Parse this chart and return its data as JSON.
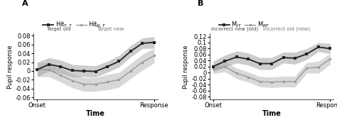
{
  "panel_A": {
    "label": "A",
    "subtitle1": "Target old",
    "subtitle2": "Target new",
    "x": [
      0,
      1,
      2,
      3,
      4,
      5,
      6,
      7,
      8,
      9,
      10
    ],
    "black_y": [
      0.003,
      0.015,
      0.01,
      0.001,
      0.0,
      -0.001,
      0.01,
      0.022,
      0.045,
      0.063,
      0.065
    ],
    "black_upper": [
      0.02,
      0.03,
      0.025,
      0.015,
      0.013,
      0.012,
      0.022,
      0.035,
      0.058,
      0.075,
      0.078
    ],
    "black_lower": [
      -0.013,
      0.0,
      -0.005,
      -0.013,
      -0.013,
      -0.014,
      -0.003,
      0.009,
      0.032,
      0.051,
      0.052
    ],
    "gray_y": [
      0.003,
      0.003,
      -0.01,
      -0.022,
      -0.03,
      -0.03,
      -0.025,
      -0.02,
      0.0,
      0.02,
      0.035
    ],
    "gray_upper": [
      0.018,
      0.018,
      0.005,
      -0.007,
      -0.015,
      -0.015,
      -0.008,
      -0.003,
      0.017,
      0.038,
      0.052
    ],
    "gray_lower": [
      -0.013,
      -0.013,
      -0.025,
      -0.038,
      -0.046,
      -0.046,
      -0.043,
      -0.037,
      -0.017,
      0.002,
      0.018
    ],
    "ylabel": "Pupil response",
    "xlabel": "Time",
    "ylim": [
      -0.065,
      0.085
    ],
    "yticks": [
      -0.06,
      -0.04,
      -0.02,
      0.0,
      0.02,
      0.04,
      0.06,
      0.08
    ],
    "leg_label1": "Hit$_{T,T}$",
    "leg_label2": "Hit$_{N,T}$"
  },
  "panel_B": {
    "label": "B",
    "subtitle1": "Incorrect new (old)",
    "subtitle2": "Incorrect old (new)",
    "x": [
      0,
      1,
      2,
      3,
      4,
      5,
      6,
      7,
      8,
      9,
      10
    ],
    "black_y": [
      0.02,
      0.038,
      0.052,
      0.045,
      0.03,
      0.03,
      0.05,
      0.048,
      0.062,
      0.085,
      0.08
    ],
    "black_upper": [
      0.038,
      0.058,
      0.072,
      0.065,
      0.05,
      0.05,
      0.068,
      0.068,
      0.08,
      0.1,
      0.097
    ],
    "black_lower": [
      0.002,
      0.018,
      0.032,
      0.025,
      0.01,
      0.01,
      0.032,
      0.028,
      0.044,
      0.07,
      0.063
    ],
    "gray_y": [
      0.013,
      0.02,
      -0.002,
      -0.015,
      -0.03,
      -0.032,
      -0.03,
      -0.03,
      0.015,
      0.018,
      0.045
    ],
    "gray_upper": [
      0.03,
      0.037,
      0.015,
      0.002,
      -0.013,
      -0.015,
      -0.012,
      -0.012,
      0.033,
      0.038,
      0.063
    ],
    "gray_lower": [
      -0.004,
      0.003,
      -0.02,
      -0.032,
      -0.047,
      -0.05,
      -0.048,
      -0.048,
      -0.002,
      -0.002,
      0.027
    ],
    "ylabel": "Pupil response",
    "xlabel": "Time",
    "ylim": [
      -0.09,
      0.13
    ],
    "yticks": [
      -0.08,
      -0.06,
      -0.04,
      -0.02,
      0.0,
      0.02,
      0.04,
      0.06,
      0.08,
      0.1,
      0.12
    ],
    "leg_label1": "M$_{IT}$",
    "leg_label2": "M$_{NT}$"
  },
  "black_color": "#222222",
  "gray_color": "#999999",
  "bg_color": "#ffffff",
  "font_size": 6,
  "label_font_size": 8
}
